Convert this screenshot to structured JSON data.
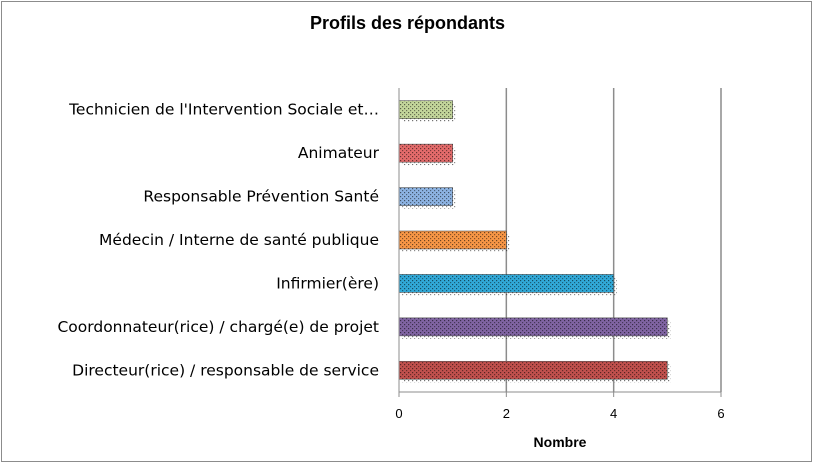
{
  "chart_data": {
    "type": "bar",
    "orientation": "horizontal",
    "title": "Profils des répondants",
    "xlabel": "Nombre",
    "ylabel": "",
    "xlim": [
      0,
      6
    ],
    "ticks": [
      "0",
      "2",
      "4",
      "6"
    ],
    "grid": true,
    "legend": "none",
    "categories": [
      "Technicien de l'Intervention Sociale et…",
      "Animateur",
      "Responsable Prévention Santé",
      "Médecin / Interne de santé publique",
      "Infirmier(ère)",
      "Coordonnateur(rice) / chargé(e) de projet",
      "Directeur(rice) / responsable de service"
    ],
    "values": [
      1,
      1,
      1,
      2,
      4,
      5,
      5
    ],
    "colors": [
      "#c3d69b",
      "#e46b6b",
      "#8db3e2",
      "#f79646",
      "#31a9d8",
      "#8064a2",
      "#c0504d"
    ]
  }
}
